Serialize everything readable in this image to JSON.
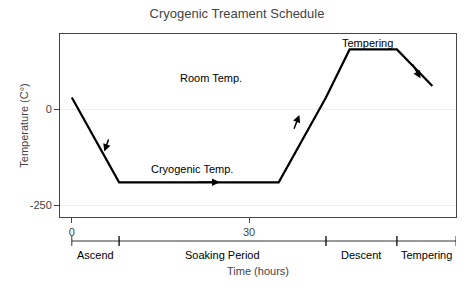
{
  "chart_data": {
    "type": "line",
    "title": "Cryogenic Treament Schedule",
    "x_label": "Time (hours)",
    "y_label": "Temperature (C°)",
    "x": [
      0,
      8,
      8,
      35,
      35,
      43,
      47,
      55,
      61
    ],
    "values": [
      30,
      -190,
      -190,
      -190,
      -190,
      30,
      155,
      155,
      60
    ],
    "color": "#000000",
    "xlim": [
      -2,
      65
    ],
    "ylim": [
      -280,
      195
    ],
    "xticks": [
      0,
      30
    ],
    "yticks": [
      -250,
      0
    ],
    "grid": "y",
    "annotations": [
      {
        "text": "Room Temp.",
        "x": 18,
        "y": 80,
        "anchor": "left"
      },
      {
        "text": "Cryogenic Temp.",
        "x": 13,
        "y": -155,
        "anchor": "left"
      },
      {
        "text": "Tempering",
        "x": 50,
        "y": 172,
        "anchor": "center"
      }
    ],
    "arrows": [
      {
        "from": [
          6.3,
          -75
        ],
        "to": [
          5.5,
          -110
        ]
      },
      {
        "from": [
          21,
          -190
        ],
        "to": [
          25,
          -190
        ]
      },
      {
        "from": [
          37.5,
          -55
        ],
        "to": [
          38.5,
          -15
        ]
      },
      {
        "from": [
          57.5,
          120
        ],
        "to": [
          59,
          80
        ]
      }
    ],
    "phases": [
      {
        "text": "Ascend",
        "start": 0,
        "end": 8
      },
      {
        "text": "Soaking Period",
        "start": 8,
        "end": 43
      },
      {
        "text": "Descent",
        "start": 43,
        "end": 55
      },
      {
        "text": "Tempering",
        "start": 55,
        "end": 65
      }
    ]
  }
}
